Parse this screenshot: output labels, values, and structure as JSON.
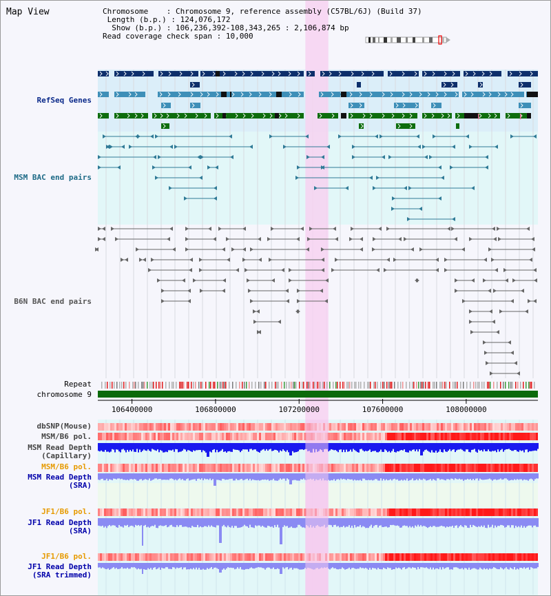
{
  "page": {
    "title": "Map View"
  },
  "info": {
    "chromosome_label": "Chromosome",
    "chromosome_value": "Chromosome 9, reference assembly (C57BL/6J) (Build 37)",
    "length_label": "Length (b.p.)",
    "length_value": "124,076,172",
    "show_label": "Show (b.p.)",
    "show_value": "106,236,392-108,343,265 : 2,106,874 bp",
    "span_label": "Read coverage check span",
    "span_value": "10,000"
  },
  "tracks": {
    "refseq": "RefSeq Genes",
    "msm_bac": "MSM BAC end pairs",
    "b6n_bac": "B6N BAC end pairs",
    "repeat": "Repeat",
    "chromosome": "chromosome 9",
    "dbsnp": "dbSNP(Mouse)",
    "msm_b6_pol_1": "MSM/B6 pol.",
    "msm_depth_cap_1": "MSM Read Depth",
    "msm_depth_cap_2": "(Capillary)",
    "msm_b6_pol_2": "MSM/B6 pol.",
    "msm_depth_sra_1": "MSM Read Depth",
    "msm_depth_sra_2": "(SRA)",
    "jf1_b6_pol_1": "JF1/B6 pol.",
    "jf1_depth_sra_1": "JF1 Read Depth",
    "jf1_depth_sra_2": "(SRA)",
    "jf1_b6_pol_2": "JF1/B6 pol.",
    "jf1_depth_trim_1": "JF1 Read Depth",
    "jf1_depth_trim_2": "(SRA trimmed)"
  },
  "axis": {
    "view_start": 106236392,
    "view_end": 108343265,
    "ticks": [
      "106400000",
      "106800000",
      "107200000",
      "107600000",
      "108000000"
    ]
  },
  "highlight": {
    "start": 107230000,
    "end": 107340000,
    "color": "#f7d2f1"
  },
  "colors": {
    "refseq_dark": "#0d2f6b",
    "refseq_mid": "#3e8fb8",
    "refseq_green": "#0d6d0d",
    "msm_bac": "#2f7a96",
    "b6n_bac": "#666666",
    "chromosome_bar": "#0b6a0b",
    "depth_capillary": "#1a1aef",
    "depth_sra": "#8a8af3",
    "pol_msm_label": "#e69a00",
    "depth_label": "#0000aa"
  }
}
